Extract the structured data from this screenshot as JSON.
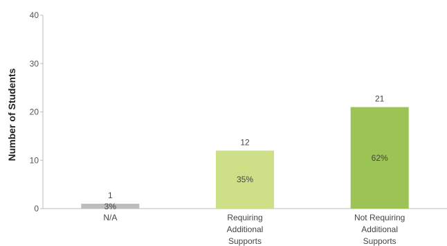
{
  "chart_data": {
    "type": "bar",
    "title": "",
    "xlabel": "",
    "ylabel": "Number of Students",
    "ylim": [
      0,
      40
    ],
    "yticks": [
      0,
      10,
      20,
      30,
      40
    ],
    "grid": false,
    "categories": [
      [
        "N/A"
      ],
      [
        "Requiring",
        "Additional",
        "Supports"
      ],
      [
        "Not Requiring",
        "Additional",
        "Supports"
      ]
    ],
    "values": [
      1,
      12,
      21
    ],
    "value_labels": [
      "1",
      "12",
      "21"
    ],
    "percent_labels": [
      "3%",
      "35%",
      "62%"
    ],
    "colors": [
      "#bdbdbd",
      "#cde087",
      "#9cc356"
    ]
  }
}
